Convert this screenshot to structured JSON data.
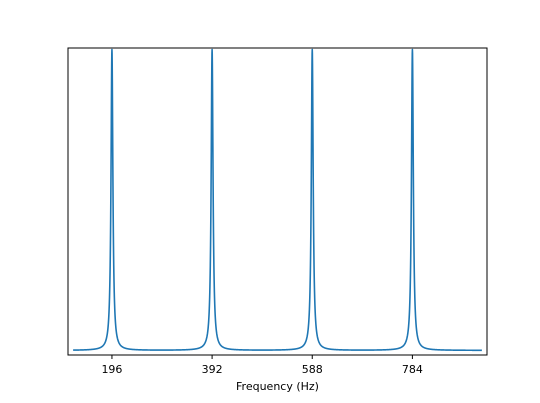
{
  "chart_data": {
    "type": "line",
    "title": "",
    "xlabel": "Frequency (Hz)",
    "ylabel": "",
    "xlim": [
      110,
      930
    ],
    "ylim": [
      0,
      1.0
    ],
    "x_ticks": [
      196,
      392,
      588,
      784
    ],
    "x_tick_labels": [
      "196",
      "392",
      "588",
      "784"
    ],
    "y_ticks_visible": false,
    "grid": false,
    "legend": "none",
    "series": [
      {
        "line_color": "#1f77b4",
        "peaks_hz": [
          196,
          392,
          588,
          784
        ],
        "peak_value": 0.995,
        "baseline_value": 0.015,
        "x_range": [
          120,
          920
        ]
      }
    ]
  }
}
